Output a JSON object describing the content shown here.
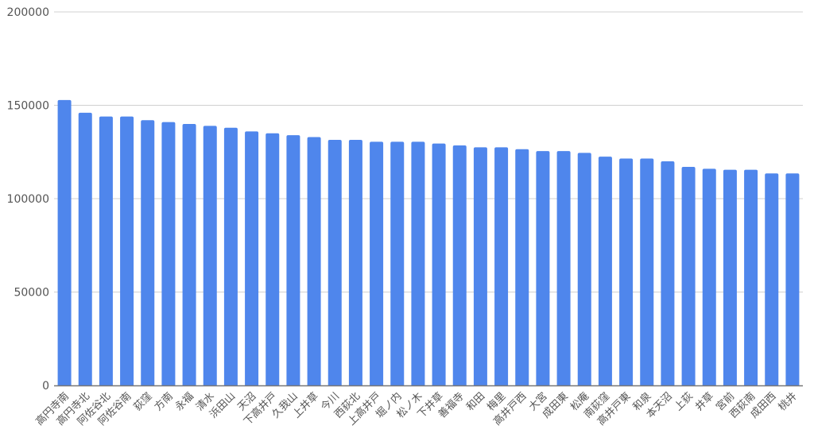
{
  "chart_data": {
    "type": "bar",
    "title": "",
    "xlabel": "",
    "ylabel": "",
    "ylim": [
      0,
      200000
    ],
    "yticks": [
      "0",
      "50000",
      "100000",
      "150000",
      "200000"
    ],
    "grid": true,
    "bar_color": "#4f86ec",
    "categories": [
      "高円寺南",
      "高円寺北",
      "阿佐谷北",
      "阿佐谷南",
      "荻窪",
      "方南",
      "永福",
      "清水",
      "浜田山",
      "天沼",
      "下高井戸",
      "久我山",
      "上井草",
      "今川",
      "西荻北",
      "上高井戸",
      "堀ノ内",
      "松ノ木",
      "下井草",
      "善福寺",
      "和田",
      "梅里",
      "高井戸西",
      "大宮",
      "成田東",
      "松庵",
      "南荻窪",
      "高井戸東",
      "和泉",
      "本天沼",
      "上荻",
      "井草",
      "宮前",
      "西荻南",
      "成田西",
      "桃井"
    ],
    "values": [
      152800,
      146000,
      144000,
      144000,
      142000,
      141000,
      140000,
      139000,
      138000,
      136000,
      135000,
      134000,
      133000,
      131500,
      131500,
      130500,
      130500,
      130500,
      129500,
      128500,
      127500,
      127500,
      126500,
      125500,
      125500,
      124500,
      122500,
      121500,
      121500,
      120000,
      117000,
      116000,
      115500,
      115500,
      113500,
      113500
    ]
  }
}
